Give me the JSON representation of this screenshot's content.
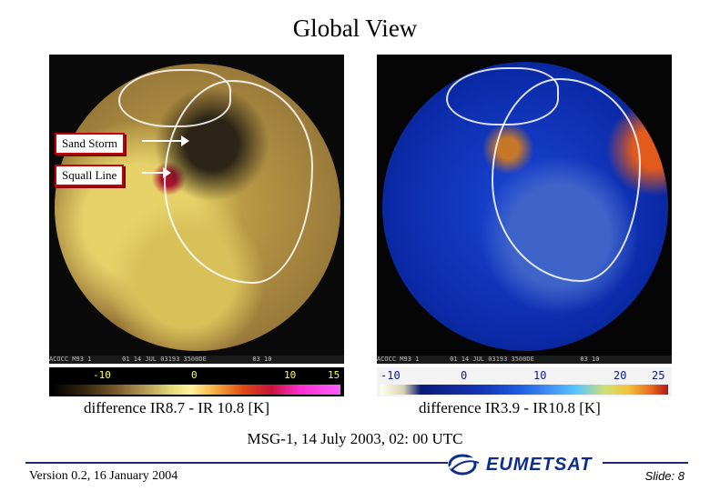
{
  "title": "Global View",
  "callouts": {
    "sand_storm": "Sand Storm",
    "squall_line": "Squall Line"
  },
  "left_panel": {
    "banner": "ACOCC M93 1        01 14 JUL 03193 3500DE            03 10",
    "colorbar_ticks": [
      "-10",
      "0",
      "10",
      "15"
    ],
    "caption": "difference IR8.7 - IR 10.8 [K]"
  },
  "right_panel": {
    "banner": "ACOCC M93 1        01 14 JUL 03193 3500DE            03 10",
    "colorbar_ticks": [
      "-10",
      "0",
      "10",
      "20",
      "25"
    ],
    "caption": "difference IR3.9 - IR10.8 [K]"
  },
  "subtitle": "MSG-1, 14 July 2003, 02: 00 UTC",
  "footer": {
    "version": "Version 0.2, 16 January 2004",
    "logo_text": "EUMETSAT",
    "slide": "Slide: 8"
  },
  "colors": {
    "footer_line": "#1d2a73",
    "callout_border": "#c40000",
    "logo": "#0d2d8c"
  }
}
